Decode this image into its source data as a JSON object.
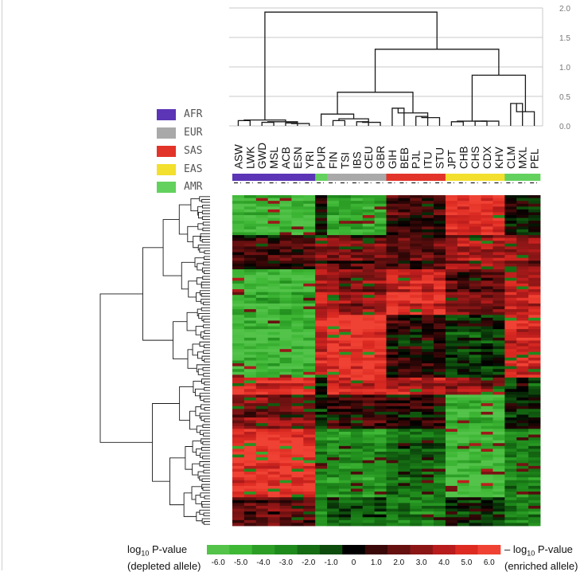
{
  "chart_data": {
    "type": "heatmap",
    "title": "",
    "populations": [
      "ASW",
      "LWK",
      "GWD",
      "MSL",
      "ACB",
      "ESN",
      "YRI",
      "PUR",
      "FIN",
      "TSI",
      "IBS",
      "CEU",
      "GBR",
      "GIH",
      "BEB",
      "PJL",
      "ITU",
      "STU",
      "JPT",
      "CHB",
      "CHS",
      "CDX",
      "KHV",
      "CLM",
      "MXL",
      "PEL"
    ],
    "population_groups": [
      "AFR",
      "AFR",
      "AFR",
      "AFR",
      "AFR",
      "AFR",
      "AFR",
      "AMR",
      "EUR",
      "EUR",
      "EUR",
      "EUR",
      "EUR",
      "SAS",
      "SAS",
      "SAS",
      "SAS",
      "SAS",
      "EAS",
      "EAS",
      "EAS",
      "EAS",
      "EAS",
      "AMR",
      "AMR",
      "AMR"
    ],
    "super_populations": [
      {
        "name": "AFR",
        "color": "#5b35b5"
      },
      {
        "name": "EUR",
        "color": "#a9a9a9"
      },
      {
        "name": "SAS",
        "color": "#e3342a"
      },
      {
        "name": "EAS",
        "color": "#f2df2e"
      },
      {
        "name": "AMR",
        "color": "#63d15e"
      }
    ],
    "dendrogram_axis": {
      "ticks": [
        "2.0",
        "1.5",
        "1.0",
        "0.5",
        "0.0"
      ],
      "values": [
        2.0,
        1.5,
        1.0,
        0.5,
        0.0
      ],
      "range": [
        0,
        2.0
      ]
    },
    "column_dendrogram": {
      "leaf_merges": [
        {
          "left": "ASW",
          "right": "LWK",
          "height": 0.09
        },
        {
          "left": "GWD",
          "right": "MSL",
          "height": 0.06
        },
        {
          "left": "ACB",
          "right": "ESN",
          "height": 0.05
        },
        {
          "left": "FIN",
          "right": "TSI",
          "height": 0.2
        },
        {
          "left": "IBS",
          "right": "CEU",
          "height": 0.08
        },
        {
          "left": "GIH",
          "right": "BEB",
          "height": 0.3
        },
        {
          "left": "PJL",
          "right": "STU",
          "height": 0.18
        },
        {
          "left": "JPT",
          "right": "KHV",
          "height": 0.08
        },
        {
          "left": "CLM",
          "right": "MXL",
          "height": 0.38
        },
        {
          "left": "AFR",
          "right": "non-AFR",
          "height": 1.93
        },
        {
          "left": "EUR",
          "right": "SAS",
          "height": 0.57
        },
        {
          "left": "EAS",
          "right": "AMR",
          "height": 0.86
        },
        {
          "left": "EUR+SAS",
          "right": "EAS+AMR",
          "height": 1.3
        }
      ]
    },
    "colorbar": {
      "ticks": [
        "-6.0",
        "-5.0",
        "-4.0",
        "-3.0",
        "-2.0",
        "-1.0",
        "0",
        "1.0",
        "2.0",
        "3.0",
        "4.0",
        "5.0",
        "6.0"
      ],
      "values": [
        -6,
        -5,
        -4,
        -3,
        -2,
        -1,
        0,
        1,
        2,
        3,
        4,
        5,
        6
      ],
      "colors": [
        "#53c34a",
        "#3fb836",
        "#2c9e26",
        "#1f8a1c",
        "#156c13",
        "#0e4c0d",
        "#000000",
        "#3a0808",
        "#661010",
        "#8c1616",
        "#b81c1c",
        "#dd2b22",
        "#f04234"
      ],
      "label_left_prefix": "log",
      "label_left_sub": "10",
      "label_left_suffix": " P-value",
      "label_left_line2": "(depleted allele)",
      "label_right_prefix": "– log",
      "label_right_sub": "10",
      "label_right_suffix": " P-value",
      "label_right_line2": "(enriched allele)"
    },
    "row_cluster_pattern": [
      {
        "rows": 14,
        "AFR": -5,
        "EUR": -4,
        "SAS": 1.5,
        "EAS": 5.5,
        "AMR": 0.5
      },
      {
        "rows": 12,
        "AFR": 1,
        "EUR": 2,
        "SAS": 1.5,
        "EAS": 3.5,
        "AMR": 3
      },
      {
        "rows": 16,
        "AFR": -5,
        "EUR": 3,
        "SAS": 5,
        "EAS": 2,
        "AMR": 4
      },
      {
        "rows": 22,
        "AFR": -5.5,
        "EUR": 5.5,
        "SAS": 0.5,
        "EAS": -1,
        "AMR": 4.5
      },
      {
        "rows": 6,
        "AFR": 5,
        "EUR": 4.5,
        "SAS": 4,
        "EAS": 3,
        "AMR": -1
      },
      {
        "rows": 12,
        "AFR": 2.5,
        "EUR": 1,
        "SAS": 0.5,
        "EAS": -5,
        "AMR": -0.5
      },
      {
        "rows": 24,
        "AFR": 5.5,
        "EUR": -3.5,
        "SAS": -2,
        "EAS": -5.5,
        "AMR": -3
      },
      {
        "rows": 10,
        "AFR": 2,
        "EUR": -1.5,
        "SAS": -2.5,
        "EAS": -0.5,
        "AMR": -2.5
      }
    ]
  }
}
